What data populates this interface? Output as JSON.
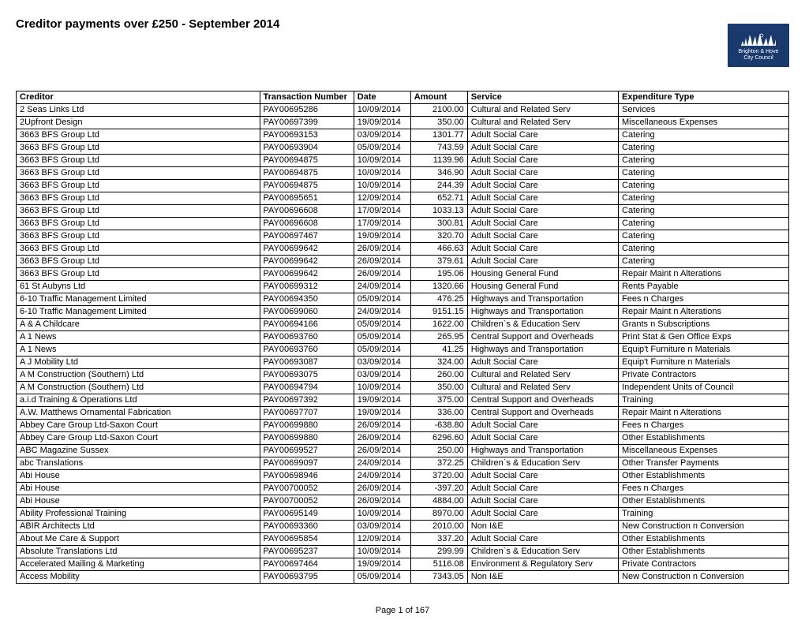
{
  "title": "Creditor payments over £250 - September 2014",
  "logo": {
    "line1": "Brighton & Hove",
    "line2": "City Council",
    "bg": "#1a3a6e"
  },
  "columns": [
    "Creditor",
    "Transaction Number",
    "Date",
    "Amount",
    "Service",
    "Expenditure Type"
  ],
  "rows": [
    [
      "2 Seas Links Ltd",
      "PAY00695286",
      "10/09/2014",
      "2100.00",
      "Cultural and Related Serv",
      "Services"
    ],
    [
      "2Upfront Design",
      "PAY00697399",
      "19/09/2014",
      "350.00",
      "Cultural and Related Serv",
      "Miscellaneous Expenses"
    ],
    [
      "3663 BFS Group Ltd",
      "PAY00693153",
      "03/09/2014",
      "1301.77",
      "Adult Social Care",
      "Catering"
    ],
    [
      "3663 BFS Group Ltd",
      "PAY00693904",
      "05/09/2014",
      "743.59",
      "Adult Social Care",
      "Catering"
    ],
    [
      "3663 BFS Group Ltd",
      "PAY00694875",
      "10/09/2014",
      "1139.96",
      "Adult Social Care",
      "Catering"
    ],
    [
      "3663 BFS Group Ltd",
      "PAY00694875",
      "10/09/2014",
      "346.90",
      "Adult Social Care",
      "Catering"
    ],
    [
      "3663 BFS Group Ltd",
      "PAY00694875",
      "10/09/2014",
      "244.39",
      "Adult Social Care",
      "Catering"
    ],
    [
      "3663 BFS Group Ltd",
      "PAY00695651",
      "12/09/2014",
      "652.71",
      "Adult Social Care",
      "Catering"
    ],
    [
      "3663 BFS Group Ltd",
      "PAY00696608",
      "17/09/2014",
      "1033.13",
      "Adult Social Care",
      "Catering"
    ],
    [
      "3663 BFS Group Ltd",
      "PAY00696608",
      "17/09/2014",
      "300.81",
      "Adult Social Care",
      "Catering"
    ],
    [
      "3663 BFS Group Ltd",
      "PAY00697467",
      "19/09/2014",
      "320.70",
      "Adult Social Care",
      "Catering"
    ],
    [
      "3663 BFS Group Ltd",
      "PAY00699642",
      "26/09/2014",
      "466.63",
      "Adult Social Care",
      "Catering"
    ],
    [
      "3663 BFS Group Ltd",
      "PAY00699642",
      "26/09/2014",
      "379.61",
      "Adult Social Care",
      "Catering"
    ],
    [
      "3663 BFS Group Ltd",
      "PAY00699642",
      "26/09/2014",
      "195.06",
      "Housing General Fund",
      "Repair Maint n Alterations"
    ],
    [
      "61 St Aubyns Ltd",
      "PAY00699312",
      "24/09/2014",
      "1320.66",
      "Housing General Fund",
      "Rents Payable"
    ],
    [
      "6-10 Traffic Management Limited",
      "PAY00694350",
      "05/09/2014",
      "476.25",
      "Highways and Transportation",
      "Fees n Charges"
    ],
    [
      "6-10 Traffic Management Limited",
      "PAY00699060",
      "24/09/2014",
      "9151.15",
      "Highways and Transportation",
      "Repair Maint n Alterations"
    ],
    [
      "A & A Childcare",
      "PAY00694166",
      "05/09/2014",
      "1622.00",
      "Children`s & Education Serv",
      "Grants n Subscriptions"
    ],
    [
      "A 1 News",
      "PAY00693760",
      "05/09/2014",
      "265.95",
      "Central Support and Overheads",
      "Print Stat & Gen Office Exps"
    ],
    [
      "A 1 News",
      "PAY00693760",
      "05/09/2014",
      "41.25",
      "Highways and Transportation",
      "Equip't Furniture n Materials"
    ],
    [
      "A J Mobility Ltd",
      "PAY00693087",
      "03/09/2014",
      "324.00",
      "Adult Social Care",
      "Equip't Furniture n Materials"
    ],
    [
      "A M Construction (Southern) Ltd",
      "PAY00693075",
      "03/09/2014",
      "260.00",
      "Cultural and Related Serv",
      "Private Contractors"
    ],
    [
      "A M Construction (Southern) Ltd",
      "PAY00694794",
      "10/09/2014",
      "350.00",
      "Cultural and Related Serv",
      "Independent Units of Council"
    ],
    [
      "a.i.d Training & Operations Ltd",
      "PAY00697392",
      "19/09/2014",
      "375.00",
      "Central Support and Overheads",
      "Training"
    ],
    [
      "A.W. Matthews Ornamental Fabrication",
      "PAY00697707",
      "19/09/2014",
      "336.00",
      "Central Support and Overheads",
      "Repair Maint n Alterations"
    ],
    [
      "Abbey Care Group Ltd-Saxon Court",
      "PAY00699880",
      "26/09/2014",
      "-638.80",
      "Adult Social Care",
      "Fees n Charges"
    ],
    [
      "Abbey Care Group Ltd-Saxon Court",
      "PAY00699880",
      "26/09/2014",
      "6296.60",
      "Adult Social Care",
      "Other Establishments"
    ],
    [
      "ABC Magazine Sussex",
      "PAY00699527",
      "26/09/2014",
      "250.00",
      "Highways and Transportation",
      "Miscellaneous Expenses"
    ],
    [
      "abc Translations",
      "PAY00699097",
      "24/09/2014",
      "372.25",
      "Children`s & Education Serv",
      "Other Transfer Payments"
    ],
    [
      "Abi House",
      "PAY00698946",
      "24/09/2014",
      "3720.00",
      "Adult Social Care",
      "Other Establishments"
    ],
    [
      "Abi House",
      "PAY00700052",
      "26/09/2014",
      "-397.20",
      "Adult Social Care",
      "Fees n Charges"
    ],
    [
      "Abi House",
      "PAY00700052",
      "26/09/2014",
      "4884.00",
      "Adult Social Care",
      "Other Establishments"
    ],
    [
      "Ability Professional Training",
      "PAY00695149",
      "10/09/2014",
      "8970.00",
      "Adult Social Care",
      "Training"
    ],
    [
      "ABIR Architects Ltd",
      "PAY00693360",
      "03/09/2014",
      "2010.00",
      "Non I&E",
      "New Construction n Conversion"
    ],
    [
      "About Me Care & Support",
      "PAY00695854",
      "12/09/2014",
      "337.20",
      "Adult Social Care",
      "Other Establishments"
    ],
    [
      "Absolute Translations Ltd",
      "PAY00695237",
      "10/09/2014",
      "299.99",
      "Children`s & Education Serv",
      "Other Establishments"
    ],
    [
      "Accelerated Mailing & Marketing",
      "PAY00697464",
      "19/09/2014",
      "5116.08",
      "Environment & Regulatory Serv",
      "Private Contractors"
    ],
    [
      "Access Mobility",
      "PAY00693795",
      "05/09/2014",
      "7343.05",
      "Non I&E",
      "New Construction n Conversion"
    ]
  ],
  "footer": "Page 1 of 167"
}
